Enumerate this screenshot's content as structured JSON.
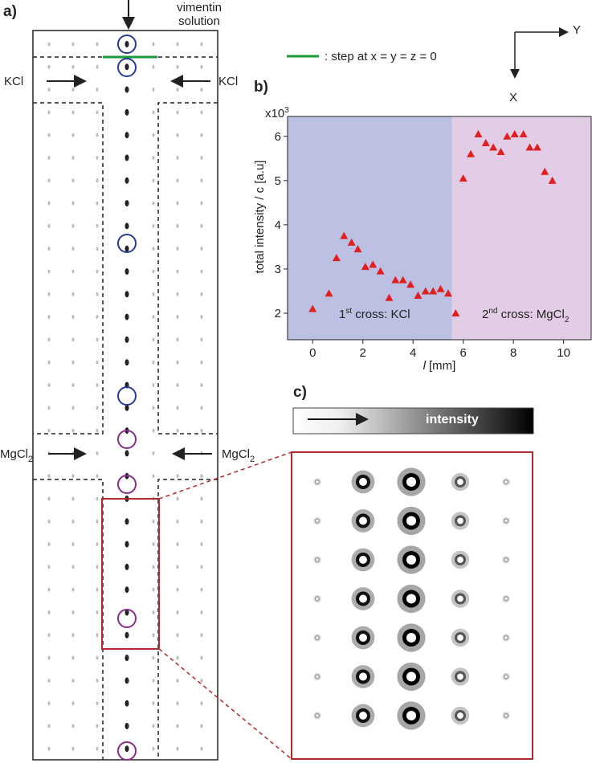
{
  "figure": {
    "panel_a": "a)",
    "panel_b": "b)",
    "panel_c": "c)",
    "inlet_top": [
      "vimentin",
      "solution"
    ],
    "kcl_left": "KCl",
    "kcl_right": "KCl",
    "mgcl_left": [
      "MgCl",
      "2"
    ],
    "mgcl_right": [
      "MgCl",
      "2"
    ],
    "legend_text": ": step at x = y = z = 0",
    "axis_y": "Y",
    "axis_x": "X",
    "colorbar_label": "intensity"
  },
  "chart_data": {
    "type": "scatter",
    "xlabel": [
      "l",
      "[mm]"
    ],
    "ylabel": "total intensity / c [a.u]",
    "y_multiplier": [
      "x10",
      "3"
    ],
    "xlim": [
      -1,
      11.1
    ],
    "ylim": [
      1.4,
      6.45
    ],
    "xticks": [
      0,
      2,
      4,
      6,
      8,
      10
    ],
    "yticks": [
      2,
      3,
      4,
      5,
      6
    ],
    "regions": [
      {
        "x": [
          -1,
          5.55
        ],
        "color": "#bcc0e3",
        "label": [
          "1",
          "st",
          " cross: KCl"
        ]
      },
      {
        "x": [
          5.55,
          11.1
        ],
        "color": "#e3cce6",
        "label": [
          "2",
          "nd",
          " cross: MgCl",
          "2"
        ]
      }
    ],
    "series": [
      {
        "color": "#e02020",
        "x": [
          0,
          0.65,
          0.95,
          1.25,
          1.55,
          1.8,
          2.1,
          2.4,
          2.7,
          3.05,
          3.3,
          3.6,
          3.9,
          4.2,
          4.5,
          4.8,
          5.1,
          5.4,
          5.7,
          6.0,
          6.3,
          6.6,
          6.9,
          7.2,
          7.5,
          7.75,
          8.05,
          8.4,
          8.65,
          8.95,
          9.25,
          9.55
        ],
        "values": [
          2.1,
          2.45,
          3.25,
          3.75,
          3.6,
          3.45,
          3.05,
          3.1,
          2.95,
          2.35,
          2.75,
          2.75,
          2.65,
          2.4,
          2.5,
          2.5,
          2.55,
          2.45,
          2.0,
          5.05,
          5.6,
          6.05,
          5.85,
          5.75,
          5.65,
          6.0,
          6.05,
          6.05,
          5.75,
          5.75,
          5.2,
          5.0
        ]
      }
    ]
  }
}
